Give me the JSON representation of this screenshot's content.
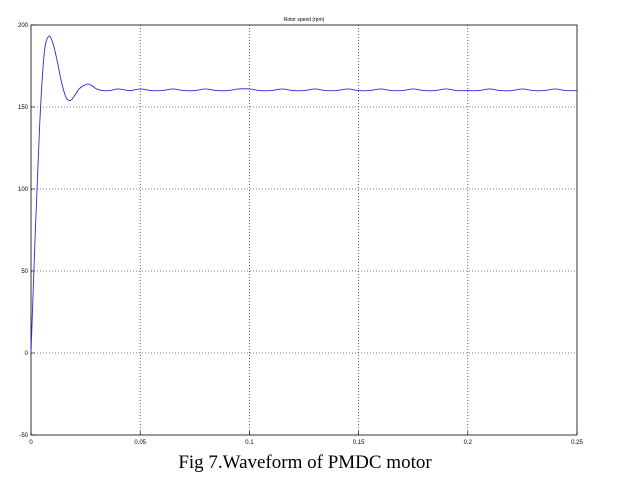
{
  "caption": "Fig 7.Waveform of PMDC motor",
  "chart_data": {
    "type": "line",
    "title": "Rotor speed (rpm)",
    "xlabel": "",
    "ylabel": "",
    "xlim": [
      0,
      0.25
    ],
    "ylim": [
      -50,
      200
    ],
    "x_ticks": [
      0,
      0.05,
      0.1,
      0.15,
      0.2,
      0.25
    ],
    "x_tick_labels": [
      "0",
      "0.05",
      "0.1",
      "0.15",
      "0.2",
      "0.25"
    ],
    "y_ticks": [
      -50,
      0,
      50,
      100,
      150,
      200
    ],
    "y_tick_labels": [
      "-50",
      "0",
      "50",
      "100",
      "150",
      "200"
    ],
    "grid": true,
    "line_color": "#2b2bd6",
    "series": [
      {
        "name": "",
        "x": [
          0,
          0.002,
          0.004,
          0.006,
          0.008,
          0.01,
          0.012,
          0.014,
          0.016,
          0.018,
          0.02,
          0.022,
          0.024,
          0.026,
          0.028,
          0.03,
          0.033,
          0.036,
          0.04,
          0.045,
          0.05,
          0.055,
          0.06,
          0.065,
          0.07,
          0.075,
          0.08,
          0.085,
          0.09,
          0.095,
          0.1,
          0.105,
          0.11,
          0.115,
          0.12,
          0.125,
          0.13,
          0.135,
          0.14,
          0.145,
          0.15,
          0.155,
          0.16,
          0.165,
          0.17,
          0.175,
          0.18,
          0.185,
          0.19,
          0.195,
          0.2,
          0.205,
          0.21,
          0.215,
          0.22,
          0.225,
          0.23,
          0.235,
          0.24,
          0.245,
          0.25
        ],
        "values": [
          0,
          75,
          140,
          182,
          193,
          189,
          178,
          165,
          156,
          154,
          157,
          161,
          163,
          164,
          163,
          161,
          160,
          160,
          161,
          160,
          161,
          160,
          160,
          161,
          160,
          160,
          161,
          160,
          160,
          161,
          161,
          160,
          160,
          161,
          160,
          160,
          161,
          160,
          160,
          161,
          160,
          160,
          161,
          160,
          160,
          161,
          160,
          160,
          161,
          160,
          160,
          160,
          161,
          160,
          160,
          161,
          160,
          160,
          161,
          160,
          160
        ]
      }
    ]
  }
}
